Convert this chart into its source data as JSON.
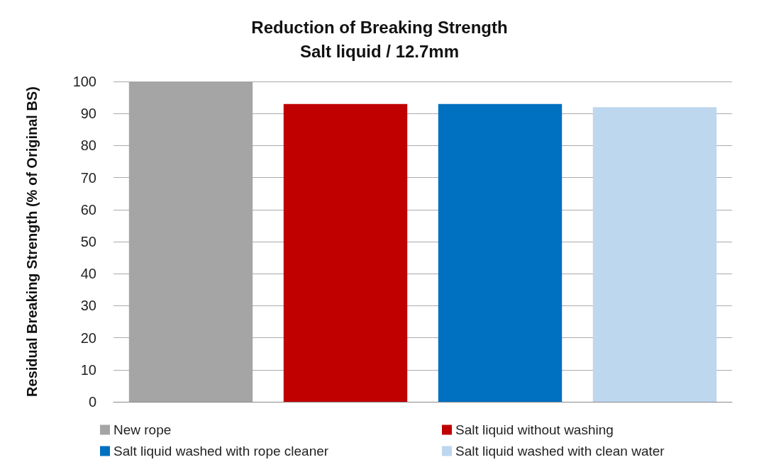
{
  "chart_data": {
    "type": "bar",
    "title": "Reduction of Breaking Strength\nSalt liquid / 12.7mm",
    "ylabel": "Residual Breaking Strength (% of Original BS)",
    "categories": [
      null,
      null,
      null,
      null
    ],
    "series": [
      {
        "name": "New rope",
        "color": "#a5a5a5",
        "values": [
          100,
          null,
          null,
          null
        ]
      },
      {
        "name": "Salt liquid without washing",
        "color": "#c00000",
        "values": [
          null,
          93,
          null,
          null
        ]
      },
      {
        "name": "Salt liquid washed with rope cleaner",
        "color": "#0070c0",
        "values": [
          null,
          null,
          93,
          null
        ]
      },
      {
        "name": "Salt liquid washed with clean water",
        "color": "#bdd7ee",
        "values": [
          null,
          null,
          null,
          92
        ]
      }
    ],
    "ylim": [
      0,
      100
    ],
    "yticks": [
      0,
      10,
      20,
      30,
      40,
      50,
      60,
      70,
      80,
      90,
      100
    ],
    "grid": "y",
    "legend": "bottom"
  }
}
